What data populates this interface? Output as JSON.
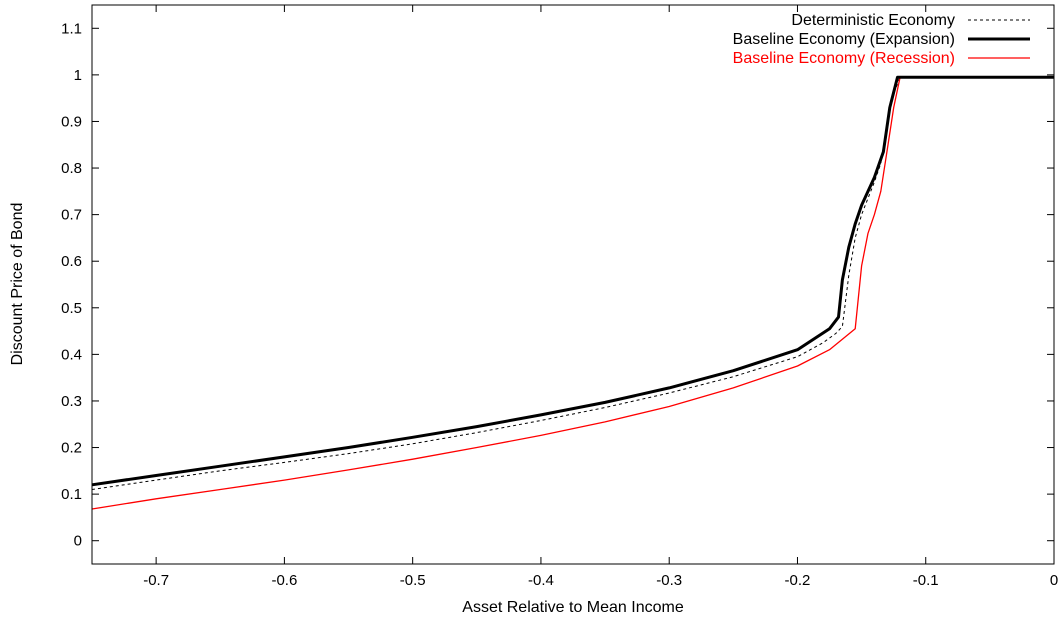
{
  "chart_data": {
    "type": "line",
    "title": "",
    "xlabel": "Asset Relative to Mean Income",
    "ylabel": "Discount Price of Bond",
    "xlim": [
      -0.75,
      0
    ],
    "ylim": [
      -0.05,
      1.15
    ],
    "xticks": [
      -0.7,
      -0.6,
      -0.5,
      -0.4,
      -0.3,
      -0.2,
      -0.1,
      0
    ],
    "xtick_labels": [
      "-0.7",
      "-0.6",
      "-0.5",
      "-0.4",
      "-0.3",
      "-0.2",
      "-0.1",
      "0"
    ],
    "yticks": [
      0,
      0.1,
      0.2,
      0.3,
      0.4,
      0.5,
      0.6,
      0.7,
      0.8,
      0.9,
      1,
      1.1
    ],
    "ytick_labels": [
      "0",
      "0.1",
      "0.2",
      "0.3",
      "0.4",
      "0.5",
      "0.6",
      "0.7",
      "0.8",
      "0.9",
      "1",
      "1.1"
    ],
    "grid": false,
    "legend_position": "top-right",
    "series": [
      {
        "name": "Deterministic Economy",
        "color": "#000000",
        "style": "dotted",
        "x": [
          -0.75,
          -0.7,
          -0.65,
          -0.6,
          -0.55,
          -0.5,
          -0.45,
          -0.4,
          -0.35,
          -0.3,
          -0.25,
          -0.2,
          -0.18,
          -0.17,
          -0.165,
          -0.16,
          -0.155,
          -0.15,
          -0.14,
          -0.135,
          -0.13,
          -0.125,
          -0.12,
          0
        ],
        "y": [
          0.11,
          0.13,
          0.15,
          0.168,
          0.187,
          0.208,
          0.232,
          0.258,
          0.286,
          0.317,
          0.352,
          0.395,
          0.425,
          0.445,
          0.46,
          0.57,
          0.65,
          0.7,
          0.77,
          0.81,
          0.9,
          0.96,
          0.995,
          0.995
        ]
      },
      {
        "name": "Baseline Economy (Expansion)",
        "color": "#000000",
        "style": "solid-thick",
        "x": [
          -0.75,
          -0.7,
          -0.65,
          -0.6,
          -0.55,
          -0.5,
          -0.45,
          -0.4,
          -0.35,
          -0.3,
          -0.25,
          -0.2,
          -0.175,
          -0.168,
          -0.165,
          -0.16,
          -0.155,
          -0.15,
          -0.14,
          -0.133,
          -0.128,
          -0.122,
          0
        ],
        "y": [
          0.12,
          0.14,
          0.16,
          0.18,
          0.2,
          0.222,
          0.245,
          0.27,
          0.297,
          0.328,
          0.365,
          0.41,
          0.455,
          0.48,
          0.56,
          0.63,
          0.68,
          0.72,
          0.78,
          0.835,
          0.93,
          0.995,
          0.995
        ]
      },
      {
        "name": "Baseline Economy (Recession)",
        "color": "#ff0000",
        "style": "solid",
        "x": [
          -0.75,
          -0.7,
          -0.65,
          -0.6,
          -0.55,
          -0.5,
          -0.45,
          -0.4,
          -0.35,
          -0.3,
          -0.25,
          -0.2,
          -0.175,
          -0.155,
          -0.15,
          -0.145,
          -0.14,
          -0.135,
          -0.13,
          -0.125,
          -0.12,
          0
        ],
        "y": [
          0.068,
          0.09,
          0.11,
          0.13,
          0.152,
          0.175,
          0.2,
          0.226,
          0.255,
          0.288,
          0.328,
          0.375,
          0.41,
          0.455,
          0.59,
          0.66,
          0.7,
          0.75,
          0.84,
          0.93,
          0.995,
          0.995
        ]
      }
    ]
  }
}
